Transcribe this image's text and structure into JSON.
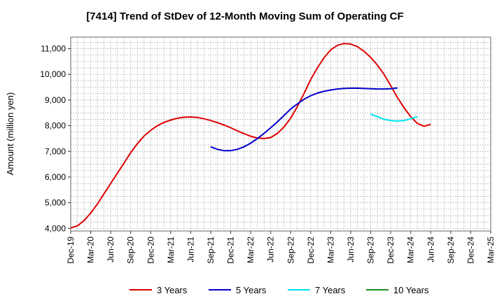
{
  "chart_data": {
    "type": "line",
    "title": "[7414]  Trend of StDev of 12-Month Moving Sum of Operating CF",
    "ylabel": "Amount (million yen)",
    "xlabel": "",
    "ylim": [
      3900,
      11450
    ],
    "yticks": [
      4000,
      5000,
      6000,
      7000,
      8000,
      9000,
      10000,
      11000
    ],
    "ytick_labels": [
      "4,000",
      "5,000",
      "6,000",
      "7,000",
      "8,000",
      "9,000",
      "10,000",
      "11,000"
    ],
    "x_start": "Dec-19",
    "x_end": "Mar-25",
    "xtick_labels": [
      "Dec-19",
      "Mar-20",
      "Jun-20",
      "Sep-20",
      "Dec-20",
      "Mar-21",
      "Jun-21",
      "Sep-21",
      "Dec-21",
      "Mar-22",
      "Jun-22",
      "Sep-22",
      "Dec-22",
      "Mar-23",
      "Jun-23",
      "Sep-23",
      "Dec-23",
      "Mar-24",
      "Jun-24",
      "Sep-24",
      "Dec-24",
      "Mar-25"
    ],
    "grid": true,
    "legend_position": "bottom",
    "series": [
      {
        "name": "3 Years",
        "color": "#dd0000",
        "start": "Dec-19",
        "values": [
          4020,
          4100,
          4300,
          4600,
          4950,
          5350,
          5750,
          6150,
          6550,
          6950,
          7300,
          7600,
          7820,
          8000,
          8130,
          8220,
          8290,
          8330,
          8340,
          8320,
          8270,
          8200,
          8120,
          8030,
          7920,
          7800,
          7690,
          7590,
          7520,
          7500,
          7540,
          7700,
          7950,
          8300,
          8750,
          9250,
          9800,
          10250,
          10650,
          10950,
          11130,
          11200,
          11180,
          11080,
          10900,
          10660,
          10360,
          10000,
          9560,
          9100,
          8700,
          8350,
          8090,
          7980,
          8050
        ]
      },
      {
        "name": "5 Years",
        "color": "#0000cc",
        "start": "Sep-21",
        "values": [
          7180,
          7080,
          7030,
          7030,
          7080,
          7180,
          7320,
          7500,
          7700,
          7920,
          8150,
          8400,
          8650,
          8850,
          9030,
          9170,
          9270,
          9340,
          9390,
          9430,
          9450,
          9460,
          9460,
          9450,
          9440,
          9430,
          9430,
          9440,
          9470
        ]
      },
      {
        "name": "7 Years",
        "color": "#00e5ee",
        "start": "Sep-23",
        "values": [
          8450,
          8350,
          8250,
          8200,
          8180,
          8200,
          8270,
          8350
        ]
      },
      {
        "name": "10 Years",
        "color": "#228b22",
        "start": "Mar-24",
        "values": []
      }
    ]
  }
}
